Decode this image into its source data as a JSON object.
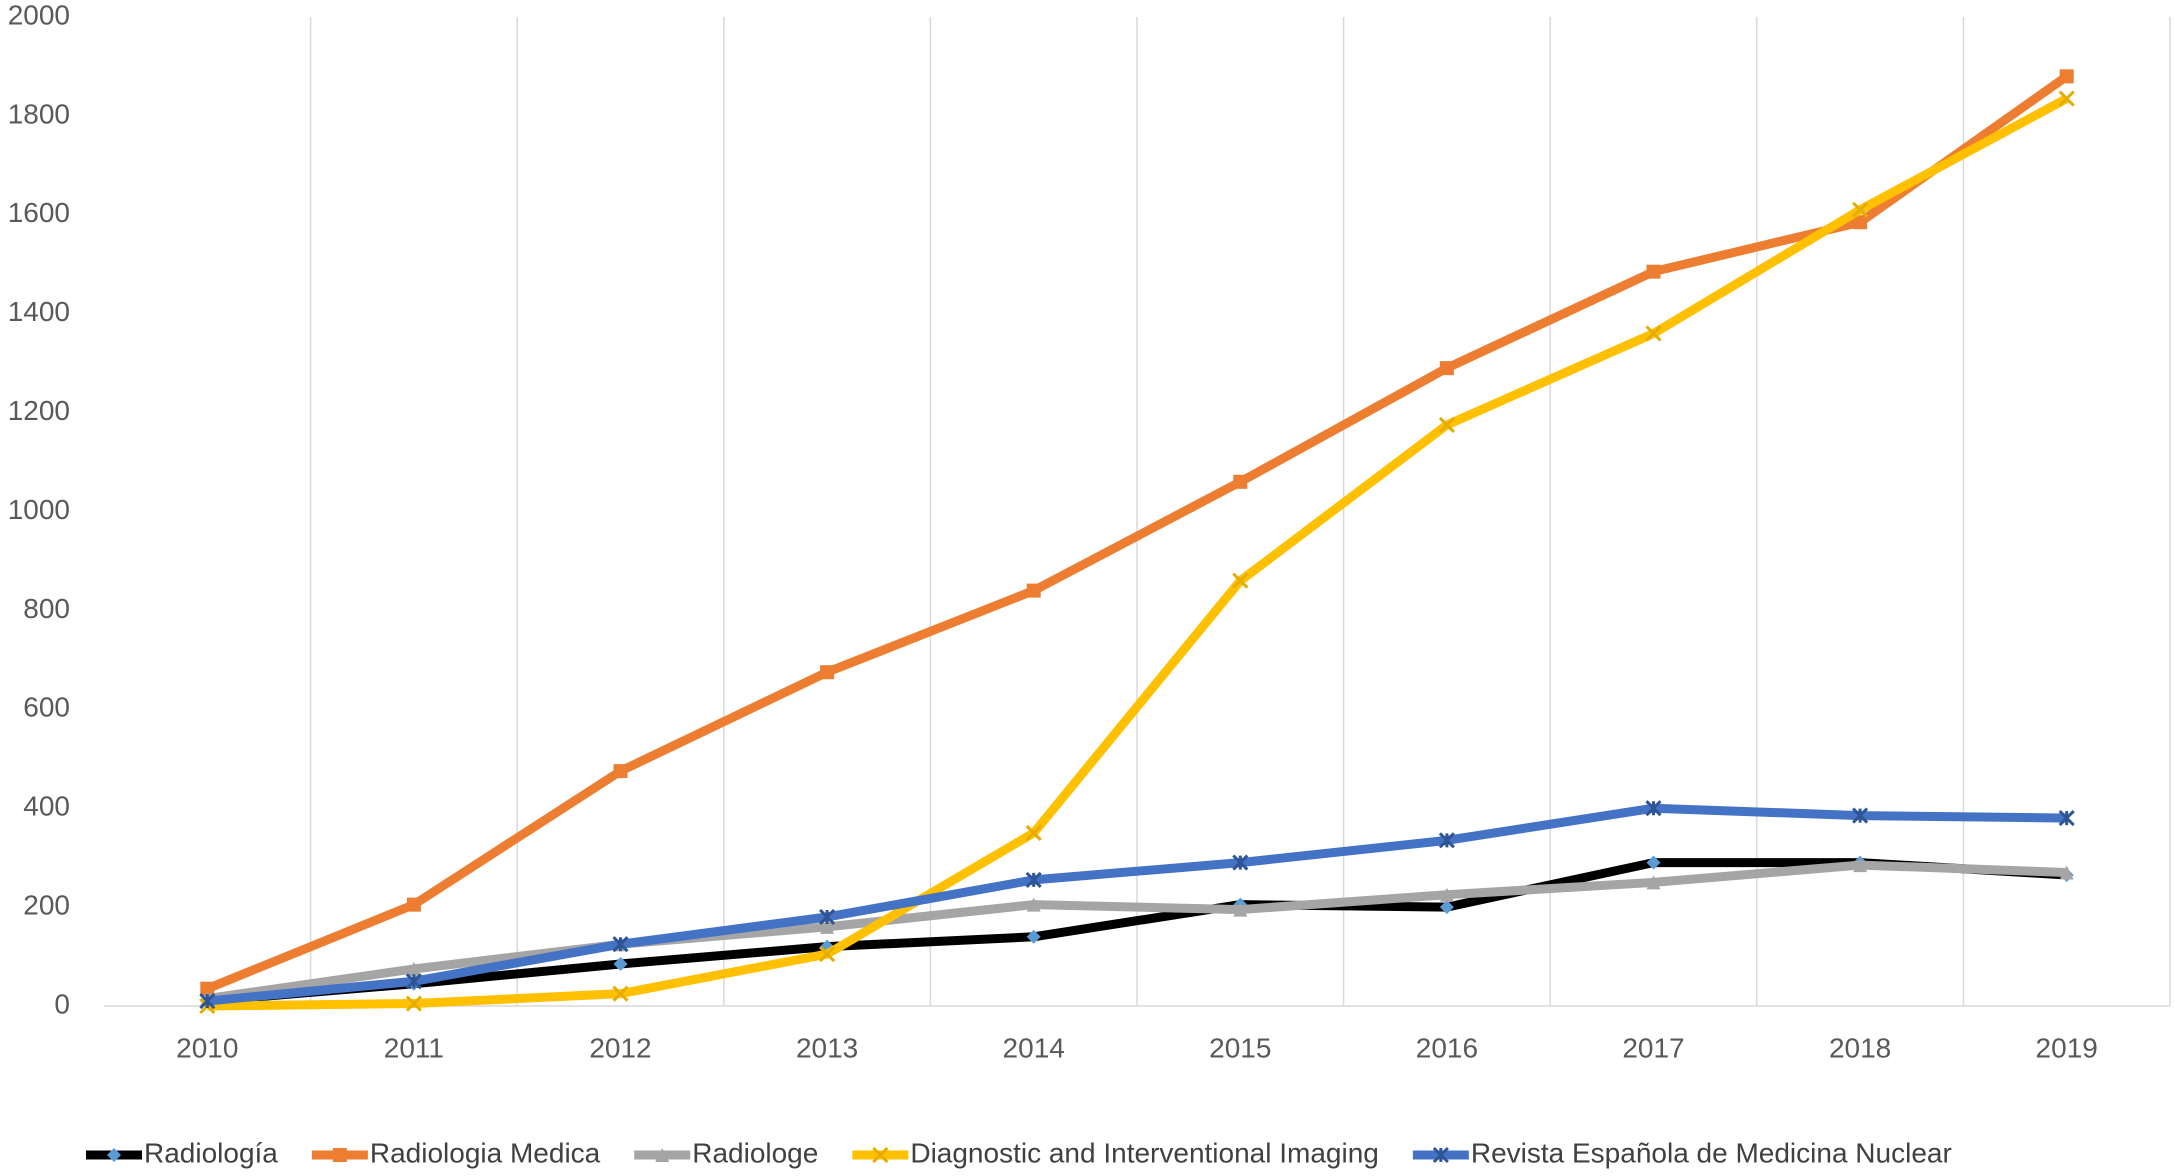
{
  "chart_data": {
    "type": "line",
    "categories": [
      "2010",
      "2011",
      "2012",
      "2013",
      "2014",
      "2015",
      "2016",
      "2017",
      "2018",
      "2019"
    ],
    "series": [
      {
        "name": "Radiología",
        "color": "#000000",
        "marker": "diamond",
        "values": [
          10,
          45,
          85,
          120,
          140,
          205,
          200,
          290,
          290,
          265
        ]
      },
      {
        "name": "Radiologia Medica",
        "color": "#ed7d31",
        "marker": "square",
        "values": [
          35,
          205,
          475,
          675,
          840,
          1060,
          1290,
          1485,
          1585,
          1880
        ]
      },
      {
        "name": "Radiologe",
        "color": "#a5a5a5",
        "marker": "triangle",
        "values": [
          15,
          75,
          125,
          160,
          205,
          195,
          225,
          250,
          285,
          270
        ]
      },
      {
        "name": "Diagnostic and Interventional Imaging",
        "color": "#ffc000",
        "marker": "x",
        "values": [
          0,
          5,
          25,
          105,
          350,
          860,
          1175,
          1360,
          1610,
          1835
        ]
      },
      {
        "name": "Revista Española de Medicina Nuclear",
        "color": "#4472c4",
        "marker": "star",
        "values": [
          10,
          50,
          125,
          180,
          255,
          290,
          335,
          400,
          385,
          380
        ]
      }
    ],
    "ylim": [
      0,
      2000
    ],
    "yticks": [
      0,
      200,
      400,
      600,
      800,
      1000,
      1200,
      1400,
      1600,
      1800,
      2000
    ],
    "grid": "x",
    "legend": "bottom"
  }
}
